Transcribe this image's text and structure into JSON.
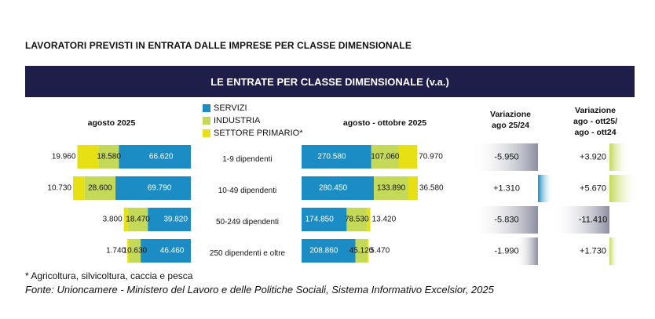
{
  "page_title": "LAVORATORI PREVISTI IN ENTRATA DALLE IMPRESE PER CLASSE DIMENSIONALE",
  "banner_title": "LE ENTRATE PER CLASSE DIMENSIONALE (v.a.)",
  "legend": [
    {
      "label": "SERVIZI",
      "color": "#1b8dc4"
    },
    {
      "label": "INDUSTRIA",
      "color": "#c4d957"
    },
    {
      "label": "SETTORE PRIMARIO*",
      "color": "#e7e014"
    }
  ],
  "headers": {
    "left": "agosto 2025",
    "mid": "agosto  - ottobre 2025",
    "var1": [
      "Variazione",
      "ago 25/24"
    ],
    "var2": [
      "Variazione",
      "ago - ott25/",
      "ago - ott24"
    ]
  },
  "categories": [
    "1-9 dipendenti",
    "10-49 dipendenti",
    "50-249 dipendenti",
    "250 dipendenti e oltre"
  ],
  "chart_data": {
    "type": "bar",
    "categories": [
      "1-9 dipendenti",
      "10-49 dipendenti",
      "50-249 dipendenti",
      "250 dipendenti e oltre"
    ],
    "agosto_2025": {
      "servizi": [
        66620,
        69790,
        39820,
        46460
      ],
      "industria": [
        18580,
        28600,
        18470,
        10630
      ],
      "primario": [
        19960,
        10730,
        3800,
        1740
      ],
      "labels": {
        "servizi": [
          "66.620",
          "69.790",
          "39.820",
          "46.460"
        ],
        "industria": [
          "18.580",
          "28.600",
          "18.470",
          "10.630"
        ],
        "primario": [
          "19.960",
          "10.730",
          "3.800",
          "1.740"
        ]
      }
    },
    "agosto_ottobre_2025": {
      "servizi": [
        270580,
        280450,
        174850,
        208860
      ],
      "industria": [
        107060,
        133890,
        78530,
        45120
      ],
      "primario": [
        70970,
        36580,
        13420,
        5470
      ],
      "labels": {
        "servizi": [
          "270.580",
          "280.450",
          "174.850",
          "208.860"
        ],
        "industria": [
          "107.060",
          "133.890",
          "78.530",
          "45.120"
        ],
        "primario": [
          "70.970",
          "36.580",
          "13.420",
          "5.470"
        ]
      }
    },
    "variazione_ago_25_24": {
      "values": [
        -5950,
        1310,
        -5830,
        -1990
      ],
      "labels": [
        "-5.950",
        "+1.310",
        "-5.830",
        "-1.990"
      ]
    },
    "variazione_ago_ott": {
      "values": [
        3920,
        5670,
        -11410,
        1730
      ],
      "labels": [
        "+3.920",
        "+5.670",
        "-11.410",
        "+1.730"
      ]
    }
  },
  "footnote": "* Agricoltura, silvicoltura, caccia e pesca",
  "source": "Fonte: Unioncamere - Ministero del Lavoro e delle Politiche Sociali, Sistema Informativo Excelsior, 2025"
}
